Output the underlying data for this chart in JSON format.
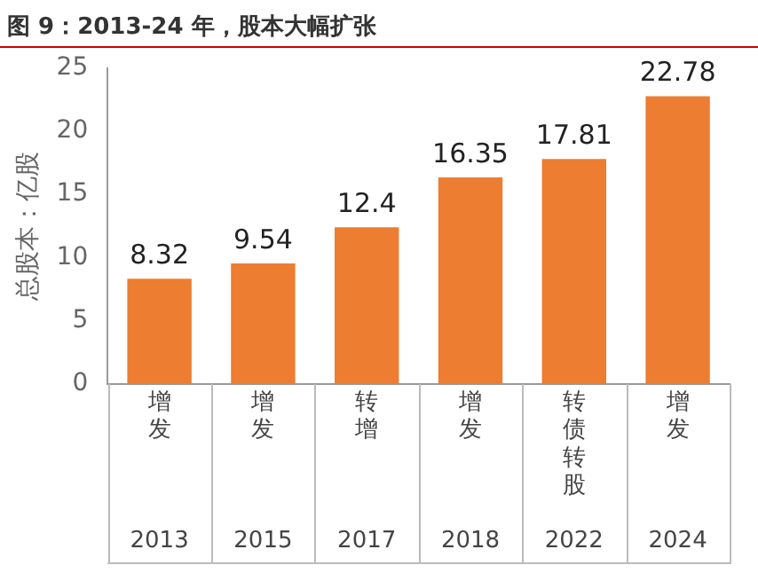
{
  "chart_data": {
    "type": "bar",
    "title": "图 9：2013-24 年，股本大幅扩张",
    "ylabel": "总股本：亿股",
    "categories": [
      "2013",
      "2015",
      "2017",
      "2018",
      "2022",
      "2024"
    ],
    "values": [
      8.32,
      9.54,
      12.4,
      16.35,
      17.81,
      22.78
    ],
    "color": "#ed7d31",
    "ylim": [
      0,
      25
    ],
    "yticks": [
      0,
      5,
      10,
      15,
      20,
      25
    ],
    "grid": false,
    "legend": false,
    "data_labels": true,
    "annotations": [
      "增发",
      "增发",
      "转增",
      "增发",
      "转债转股",
      "增发"
    ]
  }
}
